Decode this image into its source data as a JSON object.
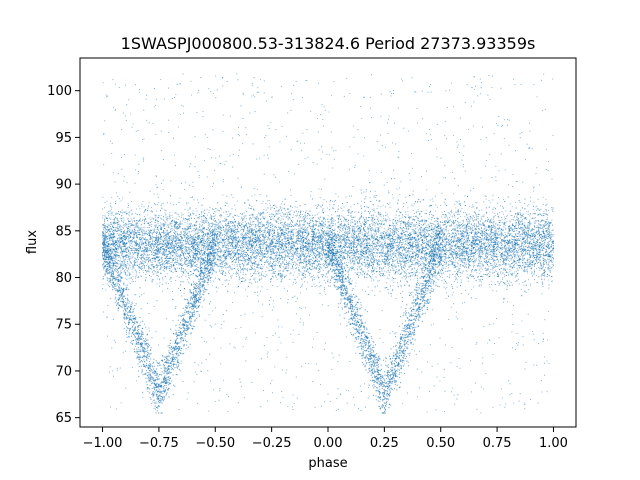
{
  "chart_data": {
    "type": "scatter",
    "title": "1SWASPJ000800.53-313824.6 Period 27373.93359s",
    "xlabel": "phase",
    "ylabel": "flux",
    "xlim": [
      -1.1,
      1.1
    ],
    "ylim": [
      64,
      103.5
    ],
    "xticks": [
      -1.0,
      -0.75,
      -0.5,
      -0.25,
      0.0,
      0.25,
      0.5,
      0.75,
      1.0
    ],
    "xtick_labels": [
      "−1.00",
      "−0.75",
      "−0.50",
      "−0.25",
      "0.00",
      "0.25",
      "0.50",
      "0.75",
      "1.00"
    ],
    "yticks": [
      65,
      70,
      75,
      80,
      85,
      90,
      95,
      100
    ],
    "ytick_labels": [
      "65",
      "70",
      "75",
      "80",
      "85",
      "90",
      "95",
      "100"
    ],
    "grid": false,
    "legend": "none",
    "point_color": "#1f77b4",
    "series": [
      {
        "phase_range": [
          -1.0,
          1.0
        ],
        "baseline_flux": 83.5,
        "baseline_scatter": 2.2,
        "flux_min": 65.5,
        "flux_max": 101.8,
        "eclipse_centers": [
          -0.75,
          0.25
        ],
        "eclipse_half_width": 0.25,
        "eclipse_min_flux": 67.5,
        "points": [
          [
            -0.98,
            83.4
          ],
          [
            -0.9,
            84.1
          ],
          [
            -0.85,
            82.9
          ],
          [
            -0.8,
            69.5
          ],
          [
            -0.75,
            67.8
          ],
          [
            -0.7,
            69.2
          ],
          [
            -0.6,
            74.5
          ],
          [
            -0.5,
            83.6
          ],
          [
            -0.25,
            84.0
          ],
          [
            0.0,
            83.2
          ],
          [
            0.1,
            75.0
          ],
          [
            0.2,
            69.0
          ],
          [
            0.25,
            67.6
          ],
          [
            0.3,
            69.4
          ],
          [
            0.4,
            74.8
          ],
          [
            0.5,
            83.5
          ],
          [
            0.75,
            84.2
          ],
          [
            1.0,
            83.1
          ]
        ]
      }
    ]
  }
}
